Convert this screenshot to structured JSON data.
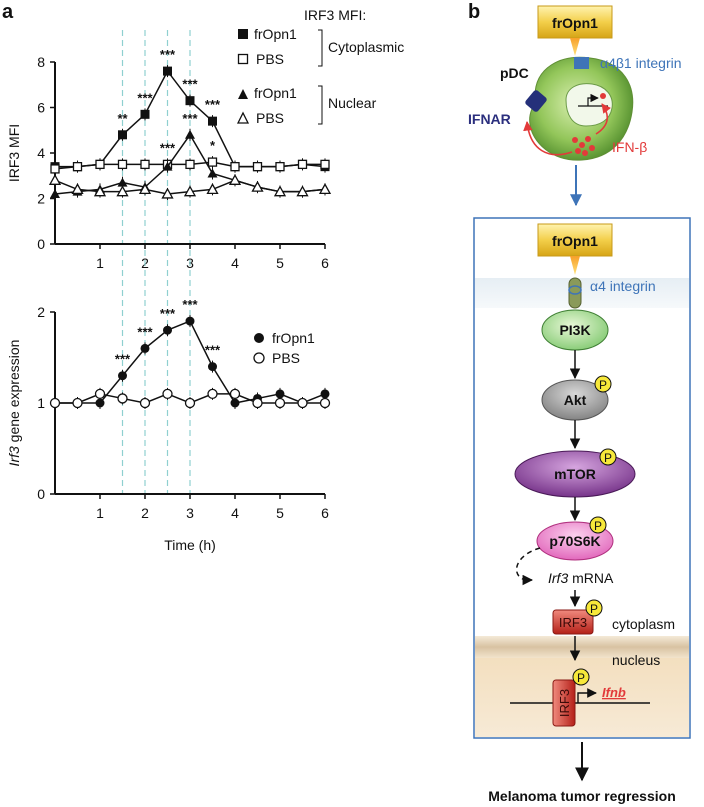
{
  "panel_labels": {
    "a": "a",
    "b": "b"
  },
  "colors": {
    "ink": "#111111",
    "grid": "#8fd0d0",
    "blue": "#3e74b8",
    "red": "#e23a3a"
  },
  "chart_data": [
    {
      "type": "line",
      "ylabel": "IRF3 MFI",
      "legend_title": "IRF3 MFI:",
      "group_labels": {
        "cyto": "Cytoplasmic",
        "nuc": "Nuclear"
      },
      "ylim": [
        0,
        8
      ],
      "yticks": [
        "0",
        "2",
        "4",
        "6",
        "8"
      ],
      "xlim": [
        0,
        6
      ],
      "xticks": [
        "1",
        "2",
        "3",
        "4",
        "5",
        "6"
      ],
      "dashed_times": [
        1.5,
        2,
        2.5,
        3
      ],
      "series": [
        {
          "name": "frOpn1",
          "group": "Cytoplasmic",
          "marker": "filled-square",
          "x": [
            0,
            0.5,
            1,
            1.5,
            2,
            2.5,
            3,
            3.5,
            4,
            4.5,
            5,
            5.5,
            6
          ],
          "y": [
            3.4,
            3.4,
            3.5,
            4.8,
            5.7,
            7.6,
            6.3,
            5.4,
            3.4,
            3.4,
            3.4,
            3.5,
            3.4
          ]
        },
        {
          "name": "PBS",
          "group": "Cytoplasmic",
          "marker": "open-square",
          "x": [
            0,
            0.5,
            1,
            1.5,
            2,
            2.5,
            3,
            3.5,
            4,
            4.5,
            5,
            5.5,
            6
          ],
          "y": [
            3.3,
            3.4,
            3.5,
            3.5,
            3.5,
            3.5,
            3.5,
            3.6,
            3.4,
            3.4,
            3.4,
            3.5,
            3.5
          ]
        },
        {
          "name": "frOpn1",
          "group": "Nuclear",
          "marker": "filled-triangle",
          "x": [
            0,
            0.5,
            1,
            1.5,
            2,
            2.5,
            3,
            3.5,
            4,
            4.5,
            5,
            5.5,
            6
          ],
          "y": [
            2.2,
            2.3,
            2.4,
            2.7,
            2.5,
            3.4,
            4.8,
            3.1,
            2.8,
            2.5,
            2.3,
            2.3,
            2.4
          ]
        },
        {
          "name": "PBS",
          "group": "Nuclear",
          "marker": "open-triangle",
          "x": [
            0,
            0.5,
            1,
            1.5,
            2,
            2.5,
            3,
            3.5,
            4,
            4.5,
            5,
            5.5,
            6
          ],
          "y": [
            2.8,
            2.4,
            2.3,
            2.3,
            2.4,
            2.2,
            2.3,
            2.4,
            2.8,
            2.5,
            2.3,
            2.3,
            2.4
          ]
        }
      ],
      "annotations": [
        {
          "text": "**",
          "x": 1.5,
          "y": 4.8
        },
        {
          "text": "***",
          "x": 2,
          "y": 5.7
        },
        {
          "text": "***",
          "x": 2.5,
          "y": 7.6
        },
        {
          "text": "***",
          "x": 3,
          "y": 6.3
        },
        {
          "text": "***",
          "x": 3.5,
          "y": 5.4
        },
        {
          "text": "***",
          "x": 2.5,
          "y": 3.5
        },
        {
          "text": "***",
          "x": 3,
          "y": 4.8
        },
        {
          "text": "*",
          "x": 3.5,
          "y": 3.6
        }
      ]
    },
    {
      "type": "line",
      "ylabel_italic": "Irf3",
      "ylabel_rest": " gene expression",
      "xlabel": "Time (h)",
      "ylim": [
        0,
        2
      ],
      "yticks": [
        "0",
        "1",
        "2"
      ],
      "xlim": [
        0,
        6
      ],
      "xticks": [
        "1",
        "2",
        "3",
        "4",
        "5",
        "6"
      ],
      "dashed_times": [
        1.5,
        2,
        2.5,
        3
      ],
      "series": [
        {
          "name": "frOpn1",
          "marker": "filled-circle",
          "x": [
            0,
            0.5,
            1,
            1.5,
            2,
            2.5,
            3,
            3.5,
            4,
            4.5,
            5,
            5.5,
            6
          ],
          "y": [
            1.0,
            1.0,
            1.0,
            1.3,
            1.6,
            1.8,
            1.9,
            1.4,
            1.0,
            1.05,
            1.1,
            1.0,
            1.1
          ]
        },
        {
          "name": "PBS",
          "marker": "open-circle",
          "x": [
            0,
            0.5,
            1,
            1.5,
            2,
            2.5,
            3,
            3.5,
            4,
            4.5,
            5,
            5.5,
            6
          ],
          "y": [
            1.0,
            1.0,
            1.1,
            1.05,
            1.0,
            1.1,
            1.0,
            1.1,
            1.1,
            1.0,
            1.0,
            1.0,
            1.0
          ]
        }
      ],
      "annotations": [
        {
          "text": "***",
          "x": 1.5,
          "y": 1.3
        },
        {
          "text": "***",
          "x": 2,
          "y": 1.6
        },
        {
          "text": "***",
          "x": 2.5,
          "y": 1.8
        },
        {
          "text": "***",
          "x": 3,
          "y": 1.9
        },
        {
          "text": "***",
          "x": 3.5,
          "y": 1.4
        }
      ]
    }
  ],
  "diagram": {
    "top_box_label": "frOpn1",
    "pdc_label": "pDC",
    "integrin_top_label": "α4β1 integrin",
    "ifnar_label": "IFNAR",
    "ifnb_label": "IFN-β",
    "inner_box_label": "frOpn1",
    "integrin_inner_label": "α4 integrin",
    "pi3k_label": "PI3K",
    "akt_label": "Akt",
    "mtor_label": "mTOR",
    "p70_label": "p70S6K",
    "phospho_label": "P",
    "mrna_italic": "Irf3",
    "mrna_rest": " mRNA",
    "irf3_label": "IRF3",
    "cytoplasm_label": "cytoplasm",
    "nucleus_label": "nucleus",
    "irf3_nuclear_label": "IRF3",
    "ifnb_gene_label": "Ifnb",
    "final_label": "Melanoma tumor regression"
  }
}
